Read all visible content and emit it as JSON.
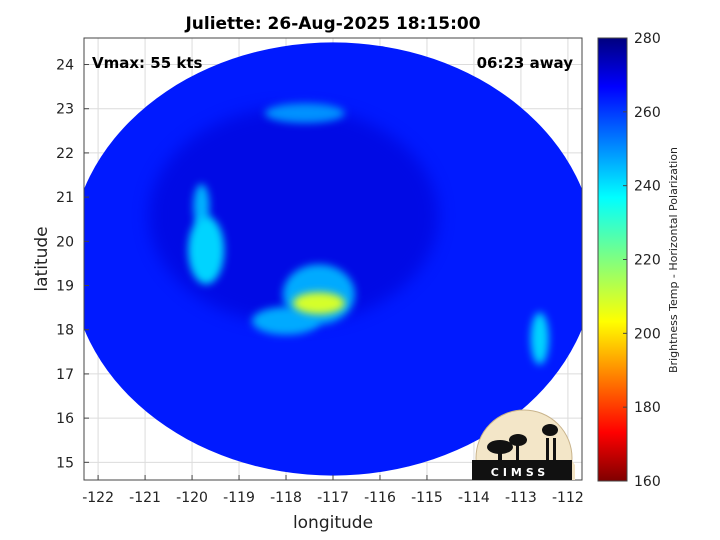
{
  "title": "Juliette: 26-Aug-2025 18:15:00",
  "annotations": {
    "vmax": "Vmax: 55 kts",
    "away": "06:23 away"
  },
  "logo_text": "CIMSS",
  "chart_data": {
    "type": "heatmap",
    "title": "Juliette: 26-Aug-2025 18:15:00",
    "xlabel": "longitude",
    "ylabel": "latitude",
    "xlim": [
      -122.3,
      -111.7
    ],
    "ylim": [
      14.6,
      24.6
    ],
    "xticks": [
      -122,
      -121,
      -120,
      -119,
      -118,
      -117,
      -116,
      -115,
      -114,
      -113,
      -112
    ],
    "yticks": [
      15,
      16,
      17,
      18,
      19,
      20,
      21,
      22,
      23,
      24
    ],
    "grid": true,
    "colorbar": {
      "label": "Brightness Temp - Horizontal Polarization",
      "min": 160,
      "max": 280,
      "ticks": [
        160,
        180,
        200,
        220,
        240,
        260,
        280
      ],
      "colormap": "jet"
    },
    "swath_center": {
      "lon": -117.0,
      "lat": 19.6
    },
    "swath_radius_deg": {
      "lon": 5.6,
      "lat": 4.9
    },
    "background_tb": 262,
    "features": [
      {
        "name": "warm core",
        "lon": -117.3,
        "lat": 18.6,
        "tb": 210
      },
      {
        "name": "eye ring",
        "lon": -117.3,
        "lat": 18.8,
        "tb": 245
      },
      {
        "name": "inner band",
        "lon": -118.0,
        "lat": 18.2,
        "tb": 245
      },
      {
        "name": "western band",
        "lon": -119.7,
        "lat": 19.8,
        "tb": 240
      },
      {
        "name": "western band upper",
        "lon": -119.8,
        "lat": 20.8,
        "tb": 244
      },
      {
        "name": "northern band",
        "lon": -117.6,
        "lat": 22.9,
        "tb": 248
      },
      {
        "name": "eastern cell",
        "lon": -112.6,
        "lat": 17.8,
        "tb": 240
      }
    ]
  }
}
